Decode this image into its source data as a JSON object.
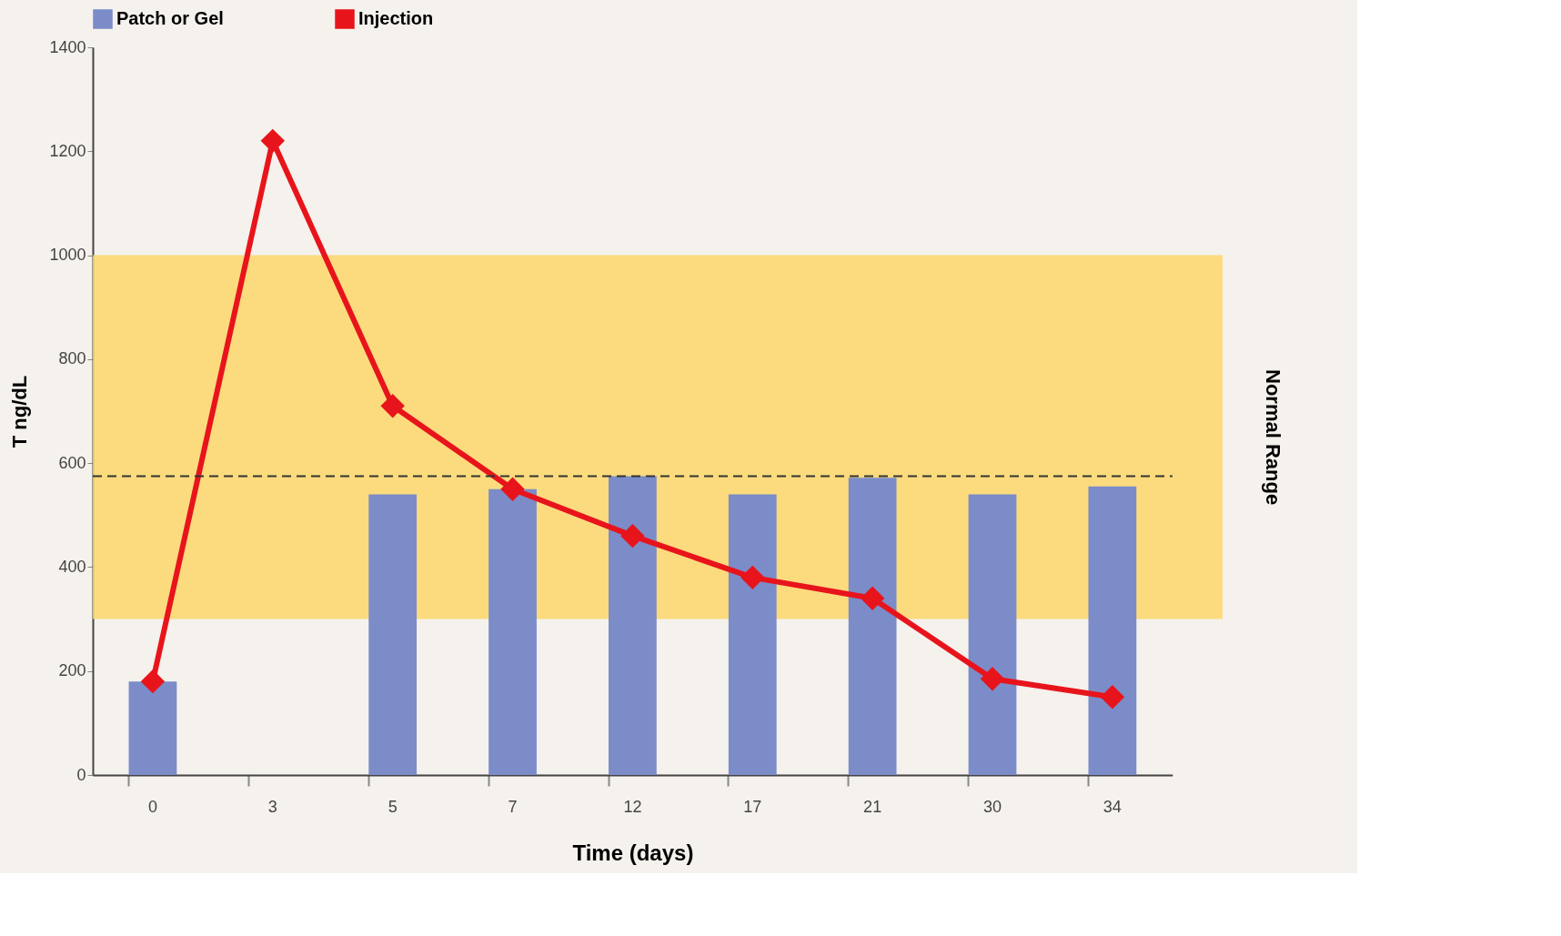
{
  "chart_data": {
    "type": "bar",
    "xlabel": "Time (days)",
    "ylabel": "T ng/dL",
    "categories": [
      "0",
      "3",
      "5",
      "7",
      "12",
      "17",
      "21",
      "30",
      "34"
    ],
    "series": [
      {
        "name": "Patch or Gel",
        "color": "#7b8cc8",
        "values": [
          180,
          null,
          540,
          550,
          575,
          540,
          572,
          540,
          555
        ]
      },
      {
        "name": "Injection",
        "type": "line",
        "color": "#e8141c",
        "marker": "diamond",
        "line_style": "solid",
        "values": [
          180,
          1220,
          710,
          550,
          460,
          380,
          340,
          185,
          150
        ]
      }
    ],
    "ylim": [
      0,
      1400
    ],
    "yticks": [
      0,
      200,
      400,
      600,
      800,
      1000,
      1200,
      1400
    ],
    "ref_lines": [
      {
        "axis": "y",
        "value": 575,
        "line_style": "dashed",
        "color": "#333333"
      }
    ],
    "bands": [
      {
        "axis": "y",
        "from": 300,
        "to": 1000,
        "label": "Normal Range",
        "color": "#fcd76a"
      }
    ],
    "grid": false,
    "legend": "top"
  }
}
